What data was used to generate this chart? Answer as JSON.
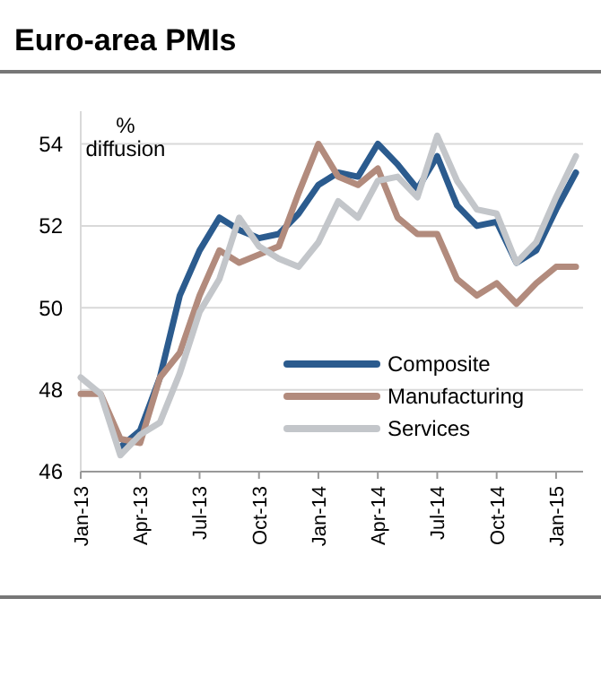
{
  "chart_data": {
    "type": "line",
    "title": "Euro-area PMIs",
    "ylabel": "% diffusion",
    "categories": [
      "Jan-13",
      null,
      null,
      "Apr-13",
      null,
      null,
      "Jul-13",
      null,
      null,
      "Oct-13",
      null,
      null,
      "Jan-14",
      null,
      null,
      "Apr-14",
      null,
      null,
      "Jul-14",
      null,
      null,
      "Oct-14",
      null,
      null,
      "Jan-15",
      null
    ],
    "series": [
      {
        "name": "Composite",
        "color": "#2b5b8e",
        "values": [
          null,
          null,
          46.6,
          47.0,
          48.3,
          50.3,
          51.4,
          52.2,
          51.9,
          51.7,
          51.8,
          52.3,
          53.0,
          53.3,
          53.2,
          54.0,
          53.5,
          52.9,
          53.7,
          52.5,
          52.0,
          52.1,
          51.1,
          51.4,
          52.4,
          53.3
        ]
      },
      {
        "name": "Manufacturing",
        "color": "#b28b7d",
        "values": [
          47.9,
          47.9,
          46.8,
          46.7,
          48.3,
          48.9,
          50.3,
          51.4,
          51.1,
          51.3,
          51.5,
          52.8,
          54.0,
          53.2,
          53.0,
          53.4,
          52.2,
          51.8,
          51.8,
          50.7,
          50.3,
          50.6,
          50.1,
          50.6,
          51.0,
          51.0
        ]
      },
      {
        "name": "Services",
        "color": "#c3c6ca",
        "values": [
          48.3,
          47.9,
          46.4,
          46.9,
          47.2,
          48.4,
          49.9,
          50.7,
          52.2,
          51.5,
          51.2,
          51.0,
          51.6,
          52.6,
          52.2,
          53.1,
          53.2,
          52.7,
          54.2,
          53.1,
          52.4,
          52.3,
          51.1,
          51.6,
          52.7,
          53.7
        ]
      }
    ],
    "ylim": [
      46,
      54.8
    ],
    "yticks": [
      46,
      48,
      50,
      52,
      54
    ],
    "grid": "y",
    "legend": "bottom right",
    "marker": "none",
    "line_style": "solid"
  }
}
